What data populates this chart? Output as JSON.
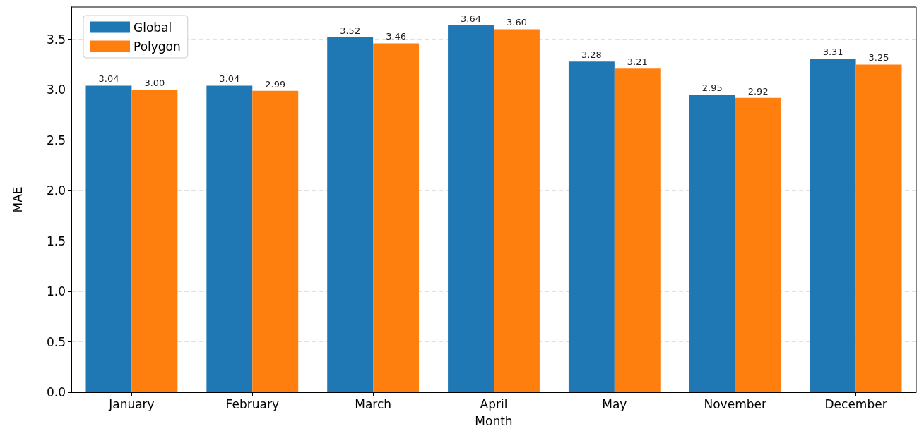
{
  "chart_data": {
    "type": "bar",
    "xlabel": "Month",
    "ylabel": "MAE",
    "categories": [
      "January",
      "February",
      "March",
      "April",
      "May",
      "November",
      "December"
    ],
    "series": [
      {
        "name": "Global",
        "color": "#1f77b4",
        "values": [
          3.04,
          3.04,
          3.52,
          3.64,
          3.28,
          2.95,
          3.31
        ],
        "value_labels": [
          "3.04",
          "3.04",
          "3.52",
          "3.64",
          "3.28",
          "2.95",
          "3.31"
        ]
      },
      {
        "name": "Polygon",
        "color": "#ff7f0e",
        "values": [
          3.0,
          2.99,
          3.46,
          3.6,
          3.21,
          2.92,
          3.25
        ],
        "value_labels": [
          "3.00",
          "2.99",
          "3.46",
          "3.60",
          "3.21",
          "2.92",
          "3.25"
        ]
      }
    ],
    "ylim": [
      0,
      3.82
    ],
    "yticks": [
      {
        "value": 0,
        "label": "0.0"
      },
      0.5,
      {
        "value": 1,
        "label": "1.0"
      },
      1.5,
      {
        "value": 2,
        "label": "2.0"
      },
      2.5,
      {
        "value": 3,
        "label": "3.0"
      },
      3.5
    ],
    "grid": "y",
    "legend": "top left"
  }
}
